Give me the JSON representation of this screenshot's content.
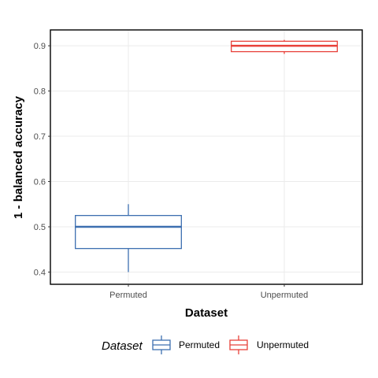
{
  "chart_data": {
    "type": "box",
    "xlabel": "Dataset",
    "ylabel": "1 - balanced accuracy",
    "ylim": [
      0.373,
      0.935
    ],
    "yticks": [
      0.4,
      0.5,
      0.6,
      0.7,
      0.8,
      0.9
    ],
    "ytick_labels": [
      "0.4",
      "0.5",
      "0.6",
      "0.7",
      "0.8",
      "0.9"
    ],
    "categories": [
      "Permuted",
      "Unpermuted"
    ],
    "boxes": [
      {
        "category": "Permuted",
        "min": 0.4,
        "q1": 0.452,
        "median": 0.5,
        "q3": 0.525,
        "max": 0.55,
        "color": "#3d6fb0"
      },
      {
        "category": "Unpermuted",
        "min": 0.882,
        "q1": 0.887,
        "median": 0.9,
        "q3": 0.91,
        "max": 0.913,
        "color": "#e8413a"
      }
    ],
    "grid": true,
    "legend": {
      "title": "Dataset",
      "position": "bottom",
      "entries": [
        {
          "label": "Permuted",
          "color": "#3d6fb0"
        },
        {
          "label": "Unpermuted",
          "color": "#e8413a"
        }
      ]
    }
  }
}
